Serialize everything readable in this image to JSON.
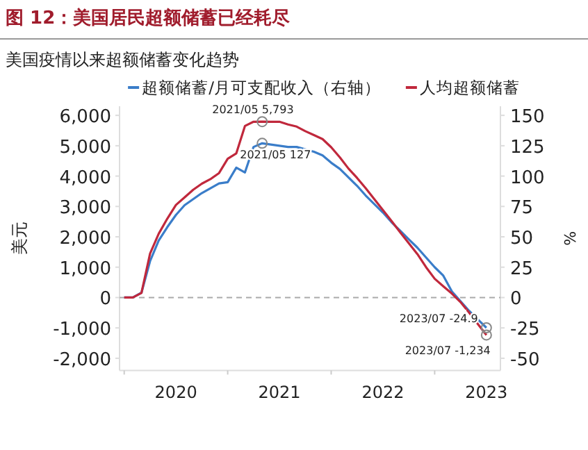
{
  "chart_data": {
    "type": "line",
    "title": "图 12：美国居民超额储蓄已经耗尽",
    "subtitle": "美国疫情以来超额储蓄变化趋势",
    "ylabel": "美元",
    "y2label": "%",
    "x": [
      "2020-01",
      "2020-02",
      "2020-03",
      "2020-04",
      "2020-05",
      "2020-06",
      "2020-07",
      "2020-08",
      "2020-09",
      "2020-10",
      "2020-11",
      "2020-12",
      "2021-01",
      "2021-02",
      "2021-03",
      "2021-04",
      "2021-05",
      "2021-06",
      "2021-07",
      "2021-08",
      "2021-09",
      "2021-10",
      "2021-11",
      "2021-12",
      "2022-01",
      "2022-02",
      "2022-03",
      "2022-04",
      "2022-05",
      "2022-06",
      "2022-07",
      "2022-08",
      "2022-09",
      "2022-10",
      "2022-11",
      "2022-12",
      "2023-01",
      "2023-02",
      "2023-03",
      "2023-04",
      "2023-05",
      "2023-06",
      "2023-07"
    ],
    "series": [
      {
        "name": "超额储蓄/月可支配收入（右轴）",
        "color": "#3a7dc9",
        "axis": "y2",
        "values": [
          0,
          0,
          4,
          30,
          47,
          58,
          68,
          76,
          81,
          86,
          90,
          94,
          95,
          107,
          103,
          124,
          127,
          126,
          125,
          124,
          124,
          122,
          120,
          117,
          111,
          106,
          99,
          92,
          84,
          77,
          70,
          62,
          55,
          48,
          41,
          33,
          25,
          18,
          5,
          -3,
          -11,
          -18,
          -24.9
        ]
      },
      {
        "name": "人均超额储蓄",
        "color": "#c0283c",
        "values": [
          0,
          0,
          150,
          1450,
          2100,
          2600,
          3050,
          3300,
          3550,
          3750,
          3900,
          4100,
          4570,
          4750,
          5650,
          5790,
          5793,
          5790,
          5790,
          5700,
          5630,
          5480,
          5350,
          5220,
          4950,
          4620,
          4250,
          3940,
          3600,
          3240,
          2880,
          2520,
          2150,
          1790,
          1430,
          1000,
          620,
          370,
          130,
          -150,
          -500,
          -870,
          -1234
        ]
      }
    ],
    "xlim": [
      "2019-12-15",
      "2023-08-20"
    ],
    "xticks": [
      {
        "value": "2020-01-01",
        "label": null
      },
      {
        "value": "2020-07-01",
        "label": "2020"
      },
      {
        "value": "2021-01-01",
        "label": null
      },
      {
        "value": "2021-07-01",
        "label": "2021"
      },
      {
        "value": "2022-01-01",
        "label": null
      },
      {
        "value": "2022-07-01",
        "label": "2022"
      },
      {
        "value": "2023-01-01",
        "label": null
      },
      {
        "value": "2023-07-01",
        "label": "2023"
      }
    ],
    "ylim": [
      -2400,
      6300
    ],
    "yticks": [
      {
        "value": -2000,
        "label": "-2,000"
      },
      {
        "value": -1000,
        "label": "-1,000"
      },
      0,
      {
        "value": 1000,
        "label": "1,000"
      },
      {
        "value": 2000,
        "label": "2,000"
      },
      {
        "value": 3000,
        "label": "3,000"
      },
      {
        "value": 4000,
        "label": "4,000"
      },
      {
        "value": 5000,
        "label": "5,000"
      },
      {
        "value": 6000,
        "label": "6,000"
      }
    ],
    "y2lim": [
      -60,
      157.5
    ],
    "y2ticks": [
      -50,
      -25,
      0,
      25,
      50,
      75,
      100,
      125,
      150
    ],
    "ref_lines": [
      {
        "axis": "y",
        "value": 0,
        "color": "#aaaaaa",
        "line_style": "dashed"
      }
    ],
    "annotations": [
      {
        "text": "2021/05 5,793",
        "x": "2021-05",
        "y": 5793
      },
      {
        "text": "2021/05 127",
        "x": "2021-05",
        "y": 5080
      },
      {
        "text": "2023/07 -24.9",
        "x": "2023-07",
        "y": -996
      },
      {
        "text": "2023/07 -1,234",
        "x": "2023-07",
        "y": -1234
      }
    ],
    "legend": "top",
    "grid": false,
    "marker": "none",
    "line_style": "solid"
  }
}
